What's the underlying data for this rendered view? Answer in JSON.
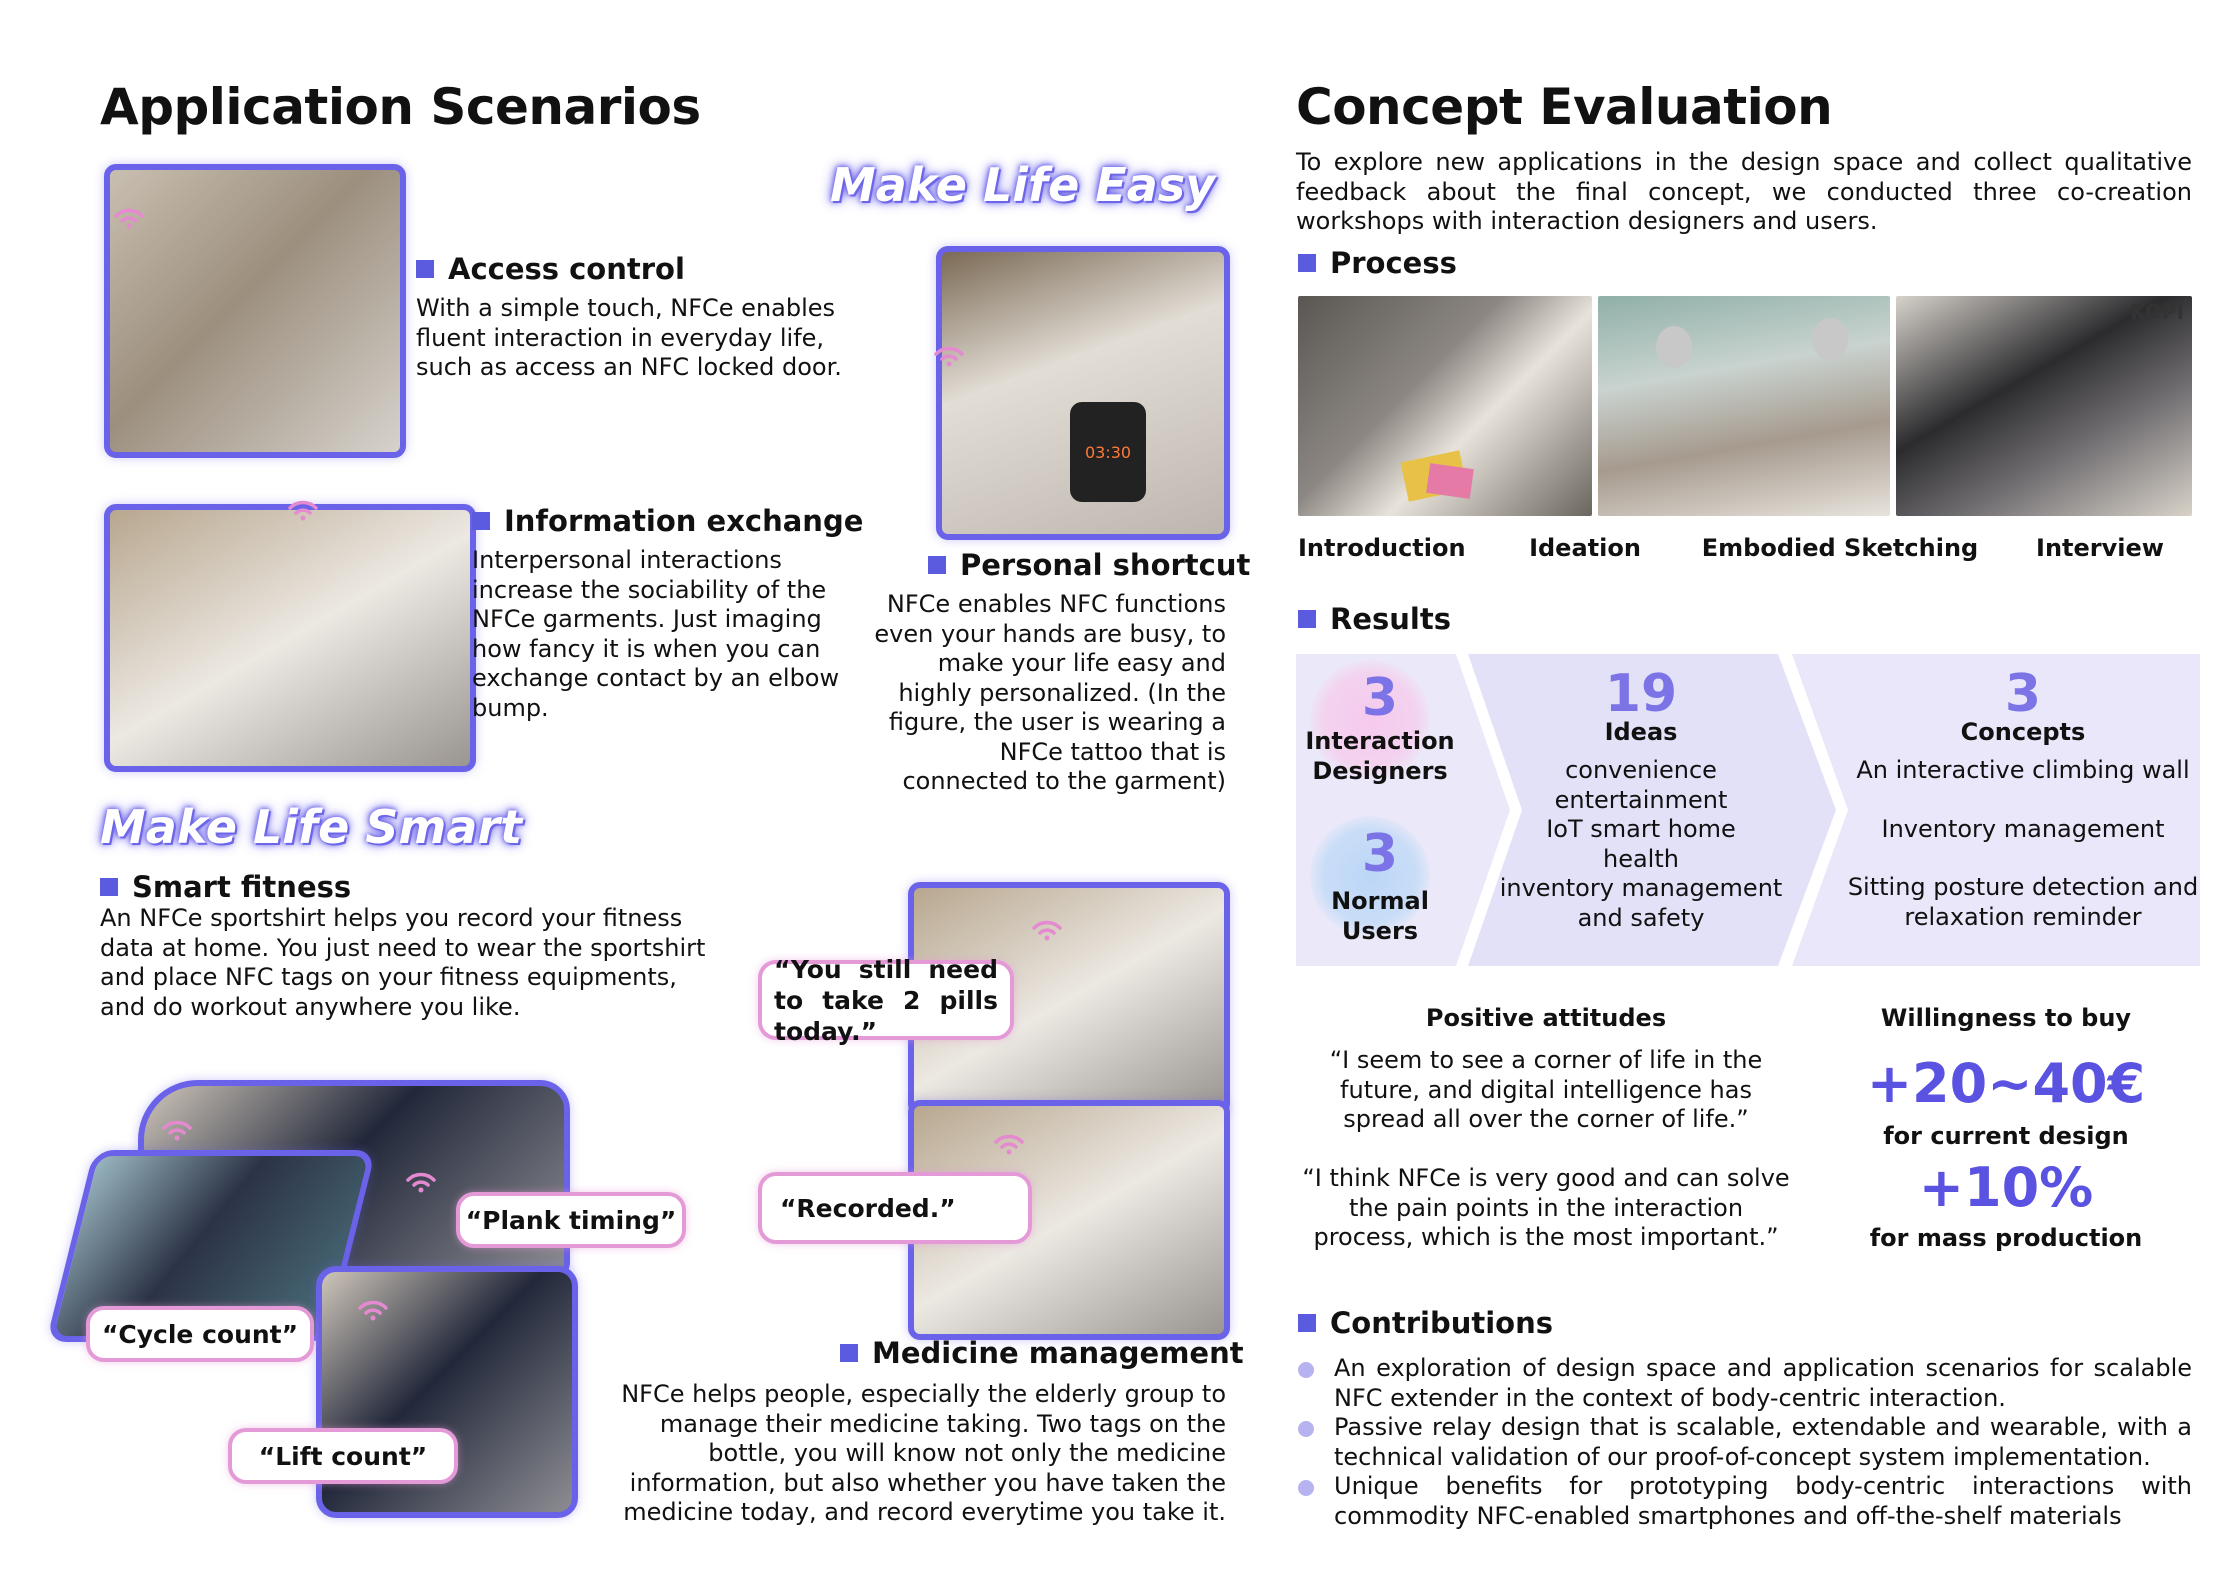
{
  "left": {
    "title": "Application Scenarios",
    "slogan_easy": "Make Life Easy",
    "slogan_smart": "Make Life Smart",
    "access": {
      "heading": "Access control",
      "text": "With a simple touch, NFCe enables fluent interaction in everyday life, such as access an NFC locked door."
    },
    "info": {
      "heading": "Information exchange",
      "text": "Interpersonal interactions increase the sociability of the NFCe garments. Just imaging how fancy it is when you can exchange contact by an elbow bump."
    },
    "shortcut": {
      "heading": "Personal shortcut",
      "text": "NFCe enables NFC functions even your hands are busy, to make your life easy and highly personalized. (In the figure, the user is wearing a NFCe tattoo that is connected to the garment)"
    },
    "fitness": {
      "heading": "Smart fitness",
      "text": "An NFCe sportshirt helps you record your fitness data at home. You just need to wear the sportshirt and place NFC tags on your fitness equipments, and do workout anywhere you like."
    },
    "medicine": {
      "heading": "Medicine management",
      "text": "NFCe helps people, especially the elderly group to manage their medicine taking. Two tags on the bottle, you will know not only the medicine information, but also whether you have taken the medicine today, and record everytime you take it."
    },
    "bubbles": {
      "pills": "“You still need to take 2 pills today.”",
      "recorded": "“Recorded.”",
      "plank": "“Plank timing”",
      "cycle": "“Cycle count”",
      "lift": "“Lift count”"
    },
    "phone_time": "03:30"
  },
  "right": {
    "title": "Concept Evaluation",
    "intro": "To explore new applications in the design space and collect qualitative feedback about the final concept, we conducted three co-creation workshops with interaction designers and users.",
    "process": {
      "heading": "Process",
      "labels": [
        "Introduction",
        "Ideation",
        "Embodied Sketching",
        "Interview"
      ],
      "shirt_text": "KOPI"
    },
    "results": {
      "heading": "Results",
      "participants": [
        {
          "count": "3",
          "label_line1": "Interaction",
          "label_line2": "Designers"
        },
        {
          "count": "3",
          "label_line1": "Normal",
          "label_line2": "Users"
        }
      ],
      "ideas": {
        "count": "19",
        "label": "Ideas",
        "items": [
          "convenience",
          "entertainment",
          "IoT smart home",
          "health",
          "inventory management",
          "and safety"
        ]
      },
      "concepts": {
        "count": "3",
        "label": "Concepts",
        "items": [
          "An interactive climbing wall",
          "Inventory management",
          "Sitting posture detection and",
          "relaxation reminder"
        ]
      },
      "colors": {
        "chevron": "#e6e4f8",
        "accent": "#6a62e8",
        "pink": "#f3c6ea",
        "blue": "#b9d4f7"
      }
    },
    "attitudes": {
      "heading": "Positive attitudes",
      "quote1": "“I seem to see a corner of life in the future, and digital intelligence has spread all over the corner of life.”",
      "quote2": "“I think NFCe is very good and can solve the pain points in the interaction process, which is the most important.”"
    },
    "willingness": {
      "heading": "Willingness to buy",
      "value1": "+20~40€",
      "label1": "for current design",
      "value2": "+10%",
      "label2": "for mass production"
    },
    "contributions": {
      "heading": "Contributions",
      "items": [
        "An exploration of design space and application scenarios for scalable NFC extender in the context of body-centric interaction.",
        "Passive relay design that is scalable, extendable and wearable, with a technical validation of our proof-of-concept system implementation.",
        "Unique benefits for prototyping body-centric interactions with commodity NFC-enabled smartphones and off-the-shelf materials"
      ]
    }
  }
}
